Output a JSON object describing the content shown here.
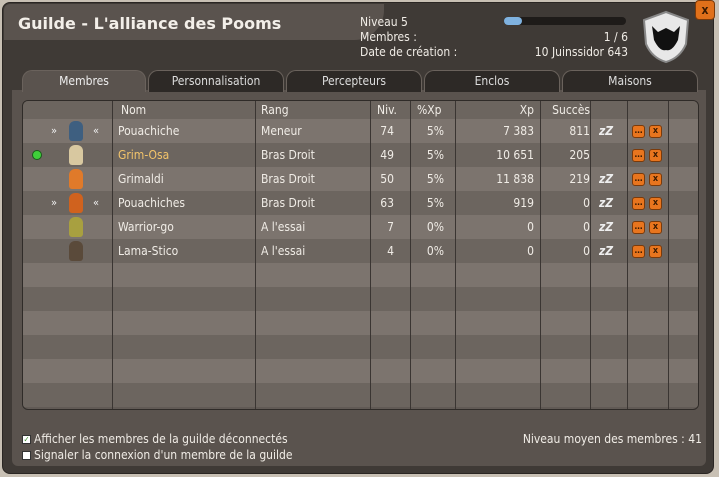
{
  "title": "Guilde - L'alliance des Pooms",
  "info": {
    "level": "Niveau 5",
    "members_label": "Membres :",
    "members_value": "1 / 6",
    "date_label": "Date de création :",
    "date_value": "10 Juinssidor 643",
    "xp_progress": 0.15
  },
  "close_label": "x",
  "tabs": [
    {
      "label": "Membres",
      "active": true
    },
    {
      "label": "Personnalisation"
    },
    {
      "label": "Percepteurs"
    },
    {
      "label": "Enclos"
    },
    {
      "label": "Maisons"
    }
  ],
  "columns": {
    "name": "Nom",
    "rank": "Rang",
    "level": "Niv.",
    "xp_pct": "%Xp",
    "xp": "Xp",
    "success": "Succès"
  },
  "members": [
    {
      "name": "Pouachiche",
      "rank": "Meneur",
      "level": "74",
      "xp_pct": "5%",
      "xp": "7 383",
      "success": "811",
      "online": false,
      "wings": true,
      "color": "#3e5f80"
    },
    {
      "name": "Grim-Osa",
      "rank": "Bras Droit",
      "level": "49",
      "xp_pct": "5%",
      "xp": "10 651",
      "success": "205",
      "online": true,
      "wings": false,
      "color": "#d8c8a0"
    },
    {
      "name": "Grimaldi",
      "rank": "Bras Droit",
      "level": "50",
      "xp_pct": "5%",
      "xp": "11 838",
      "success": "219",
      "online": false,
      "wings": false,
      "color": "#e07a2a"
    },
    {
      "name": "Pouachiches",
      "rank": "Bras Droit",
      "level": "63",
      "xp_pct": "5%",
      "xp": "919",
      "success": "0",
      "online": false,
      "wings": true,
      "color": "#d0621e"
    },
    {
      "name": "Warrior-go",
      "rank": "A l'essai",
      "level": "7",
      "xp_pct": "0%",
      "xp": "0",
      "success": "0",
      "online": false,
      "wings": false,
      "color": "#a8a040"
    },
    {
      "name": "Lama-Stico",
      "rank": "A l'essai",
      "level": "4",
      "xp_pct": "0%",
      "xp": "0",
      "success": "0",
      "online": false,
      "wings": false,
      "color": "#5a4a3a"
    }
  ],
  "footer": {
    "show_offline": "Afficher les membres de la guilde déconnectés",
    "show_offline_checked": true,
    "notify": "Signaler la connexion d'un membre de la guilde",
    "notify_checked": false,
    "avg_level": "Niveau moyen des membres : 41"
  },
  "colors": {
    "online_name": "#f3c46a",
    "button": "#e8751e"
  }
}
